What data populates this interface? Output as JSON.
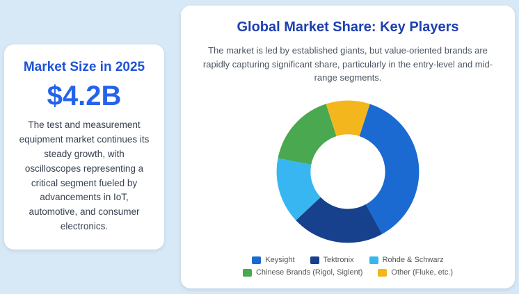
{
  "left_card": {
    "title": "Market Size in 2025",
    "value": "$4.2B",
    "description": "The test and measurement equipment market continues its steady growth, with oscilloscopes representing a critical segment fueled by advancements in IoT, automotive, and consumer electronics."
  },
  "right_card": {
    "title": "Global Market Share: Key Players",
    "subtitle": "The market is led by established giants, but value-oriented brands are rapidly capturing significant share, particularly in the entry-level and mid-range segments."
  },
  "chart_data": {
    "type": "pie",
    "variant": "doughnut",
    "title": "Global Market Share: Key Players",
    "labels": [
      "Keysight",
      "Tektronix",
      "Rohde & Schwarz",
      "Chinese Brands (Rigol, Siglent)",
      "Other (Fluke, etc.)"
    ],
    "values": [
      37,
      21,
      15,
      17,
      10
    ],
    "values_note": "percent shares estimated from arc angles; no numeric data labels shown in image",
    "colors": [
      "#1a6ad2",
      "#17408d",
      "#38b6f1",
      "#4aa850",
      "#f3b71d"
    ],
    "legend_position": "bottom",
    "legend_rows": [
      3,
      2
    ],
    "cutout": "52%",
    "start_rotation_deg": -18
  },
  "colors": {
    "background": "#d7e8f6",
    "card": "#ffffff",
    "heading_blue_left": "#1d53d8",
    "heading_blue_right": "#1e40af",
    "value_blue": "#2563eb",
    "body_text": "#374151",
    "legend_text": "#555555"
  }
}
